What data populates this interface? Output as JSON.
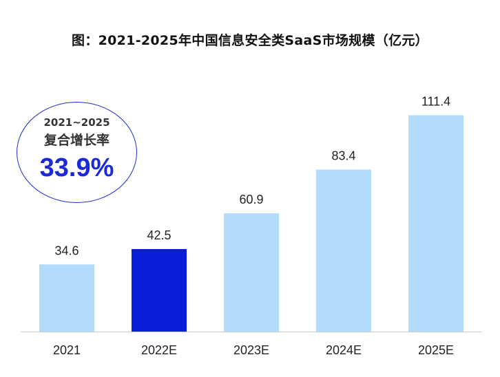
{
  "title": "图：2021-2025年中国信息安全类SaaS市场规模（亿元）",
  "cagr": {
    "period": "2021~2025",
    "label": "复合增长率",
    "value": "33.9%"
  },
  "colors": {
    "bar_default": "#b3dbfb",
    "bar_highlight": "#0a1ed9",
    "axis": "#cccccc",
    "text": "#222222"
  },
  "chart_data": {
    "type": "bar",
    "title": "图：2021-2025年中国信息安全类SaaS市场规模（亿元）",
    "categories": [
      "2021",
      "2022E",
      "2023E",
      "2024E",
      "2025E"
    ],
    "values": [
      34.6,
      42.5,
      60.9,
      83.4,
      111.4
    ],
    "value_labels": [
      "34.6",
      "42.5",
      "60.9",
      "83.4",
      "111.4"
    ],
    "highlight_index": 1,
    "xlabel": "",
    "ylabel": "",
    "ylim": [
      0,
      130
    ],
    "grid": false,
    "legend": "none"
  }
}
